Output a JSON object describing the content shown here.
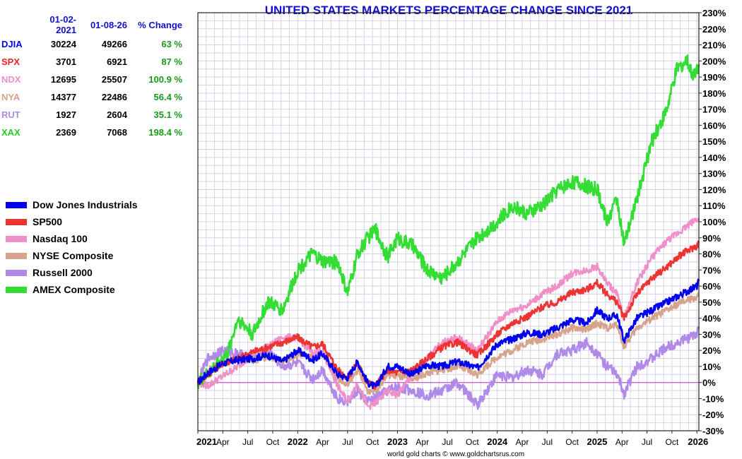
{
  "title": "UNITED STATES MARKETS PERCENTAGE CHANGE SINCE 2021",
  "credit": "world gold charts © www.goldchartsrus.com",
  "table": {
    "headers": [
      "",
      "01-02-2021",
      "01-08-26",
      "% Change"
    ],
    "rows": [
      {
        "symbol": "DJIA",
        "start": "30224",
        "end": "49266",
        "change": "63 %",
        "color": "#0000ee"
      },
      {
        "symbol": "SPX",
        "start": "3701",
        "end": "6921",
        "change": "87 %",
        "color": "#ee2222"
      },
      {
        "symbol": "NDX",
        "start": "12695",
        "end": "25507",
        "change": "100.9 %",
        "color": "#f090c8"
      },
      {
        "symbol": "NYA",
        "start": "14377",
        "end": "22486",
        "change": "56.4 %",
        "color": "#d6a48c"
      },
      {
        "symbol": "RUT",
        "start": "1927",
        "end": "2604",
        "change": "35.1 %",
        "color": "#b08ae8"
      },
      {
        "symbol": "XAX",
        "start": "2369",
        "end": "7068",
        "change": "198.4 %",
        "color": "#22cc22"
      }
    ]
  },
  "legend": [
    {
      "label": "Dow Jones Industrials",
      "color": "#0000ee"
    },
    {
      "label": "SP500",
      "color": "#ee3333"
    },
    {
      "label": "Nasdaq 100",
      "color": "#f090c8"
    },
    {
      "label": "NYSE Composite",
      "color": "#d6a48c"
    },
    {
      "label": "Russell 2000",
      "color": "#b08ae8"
    },
    {
      "label": "AMEX Composite",
      "color": "#33dd33"
    }
  ],
  "chart_data": {
    "type": "line",
    "title": "UNITED STATES MARKETS PERCENTAGE CHANGE SINCE 2021",
    "x_ticks": [
      "2021",
      "Apr",
      "Jul",
      "Oct",
      "2022",
      "Apr",
      "Jul",
      "Oct",
      "2023",
      "Apr",
      "Jul",
      "Oct",
      "2024",
      "Apr",
      "Jul",
      "Oct",
      "2025",
      "Apr",
      "Jul",
      "Oct",
      "2026"
    ],
    "y_ticks": [
      "230%",
      "220%",
      "210%",
      "200%",
      "190%",
      "180%",
      "170%",
      "160%",
      "150%",
      "140%",
      "130%",
      "120%",
      "110%",
      "100%",
      "90%",
      "80%",
      "70%",
      "60%",
      "50%",
      "40%",
      "30%",
      "20%",
      "10%",
      "0%",
      "-10%",
      "-20%",
      "-30%"
    ],
    "ylim": [
      -30,
      230
    ],
    "xlim": [
      2021.0,
      2026.02
    ],
    "y_unit": "% change",
    "grid": true,
    "legend_position": "left",
    "zero_line_color": "#cc44cc",
    "series": [
      {
        "name": "Dow Jones Industrials",
        "color": "#0000ee",
        "x": [
          2021.0,
          2021.1,
          2021.25,
          2021.4,
          2021.55,
          2021.7,
          2021.85,
          2022.0,
          2022.15,
          2022.25,
          2022.4,
          2022.5,
          2022.6,
          2022.7,
          2022.78,
          2022.9,
          2023.0,
          2023.15,
          2023.3,
          2023.45,
          2023.6,
          2023.8,
          2024.0,
          2024.15,
          2024.3,
          2024.45,
          2024.6,
          2024.75,
          2024.9,
          2025.0,
          2025.1,
          2025.2,
          2025.27,
          2025.4,
          2025.55,
          2025.7,
          2025.85,
          2026.0,
          2026.02
        ],
        "y": [
          0,
          6,
          12,
          14,
          15,
          17,
          13,
          20,
          14,
          18,
          5,
          3,
          13,
          0,
          -3,
          10,
          10,
          5,
          11,
          10,
          13,
          9,
          24,
          27,
          31,
          30,
          34,
          39,
          37,
          45,
          40,
          42,
          26,
          40,
          45,
          50,
          55,
          60,
          63
        ]
      },
      {
        "name": "SP500",
        "color": "#ee3333",
        "x": [
          2021.0,
          2021.1,
          2021.25,
          2021.4,
          2021.55,
          2021.7,
          2021.85,
          2022.0,
          2022.15,
          2022.25,
          2022.4,
          2022.5,
          2022.6,
          2022.7,
          2022.78,
          2022.9,
          2023.0,
          2023.15,
          2023.3,
          2023.45,
          2023.6,
          2023.8,
          2024.0,
          2024.15,
          2024.3,
          2024.45,
          2024.6,
          2024.75,
          2024.9,
          2025.0,
          2025.1,
          2025.2,
          2025.27,
          2025.4,
          2025.55,
          2025.7,
          2025.85,
          2026.0,
          2026.02
        ],
        "y": [
          0,
          5,
          12,
          15,
          19,
          22,
          25,
          28,
          22,
          24,
          8,
          3,
          12,
          0,
          -2,
          8,
          6,
          8,
          15,
          22,
          25,
          17,
          30,
          37,
          41,
          47,
          50,
          56,
          58,
          62,
          55,
          50,
          40,
          55,
          65,
          72,
          80,
          85,
          87
        ]
      },
      {
        "name": "Nasdaq 100",
        "color": "#f090c8",
        "x": [
          2021.0,
          2021.1,
          2021.25,
          2021.4,
          2021.55,
          2021.7,
          2021.85,
          2022.0,
          2022.15,
          2022.25,
          2022.4,
          2022.5,
          2022.6,
          2022.7,
          2022.78,
          2022.9,
          2023.0,
          2023.15,
          2023.3,
          2023.45,
          2023.6,
          2023.8,
          2024.0,
          2024.15,
          2024.3,
          2024.45,
          2024.6,
          2024.75,
          2024.9,
          2025.0,
          2025.1,
          2025.2,
          2025.27,
          2025.4,
          2025.55,
          2025.7,
          2025.85,
          2026.0,
          2026.02
        ],
        "y": [
          0,
          -2,
          4,
          10,
          18,
          22,
          28,
          28,
          18,
          20,
          -2,
          -12,
          0,
          -15,
          -13,
          -5,
          -8,
          5,
          15,
          25,
          28,
          20,
          38,
          45,
          48,
          55,
          60,
          68,
          70,
          72,
          62,
          55,
          40,
          62,
          78,
          88,
          95,
          102,
          101
        ]
      },
      {
        "name": "NYSE Composite",
        "color": "#d6a48c",
        "x": [
          2021.0,
          2021.1,
          2021.25,
          2021.4,
          2021.55,
          2021.7,
          2021.85,
          2022.0,
          2022.15,
          2022.25,
          2022.4,
          2022.5,
          2022.6,
          2022.7,
          2022.78,
          2022.9,
          2023.0,
          2023.15,
          2023.3,
          2023.45,
          2023.6,
          2023.8,
          2024.0,
          2024.15,
          2024.3,
          2024.45,
          2024.6,
          2024.75,
          2024.9,
          2025.0,
          2025.1,
          2025.2,
          2025.27,
          2025.4,
          2025.55,
          2025.7,
          2025.85,
          2026.0,
          2026.02
        ],
        "y": [
          0,
          8,
          12,
          15,
          14,
          16,
          13,
          18,
          15,
          17,
          3,
          -2,
          8,
          -5,
          -5,
          5,
          4,
          2,
          6,
          8,
          10,
          5,
          16,
          20,
          25,
          27,
          30,
          34,
          33,
          37,
          34,
          36,
          22,
          34,
          40,
          45,
          50,
          53,
          56
        ]
      },
      {
        "name": "Russell 2000",
        "color": "#b08ae8",
        "x": [
          2021.0,
          2021.1,
          2021.25,
          2021.4,
          2021.55,
          2021.7,
          2021.85,
          2022.0,
          2022.15,
          2022.25,
          2022.4,
          2022.5,
          2022.6,
          2022.7,
          2022.78,
          2022.9,
          2023.0,
          2023.15,
          2023.3,
          2023.45,
          2023.6,
          2023.8,
          2024.0,
          2024.15,
          2024.3,
          2024.45,
          2024.6,
          2024.75,
          2024.9,
          2025.0,
          2025.1,
          2025.2,
          2025.27,
          2025.4,
          2025.55,
          2025.7,
          2025.85,
          2026.0,
          2026.02
        ],
        "y": [
          0,
          15,
          20,
          18,
          15,
          20,
          10,
          12,
          2,
          8,
          -10,
          -12,
          -5,
          -12,
          -10,
          -5,
          -3,
          -5,
          -8,
          -5,
          0,
          -14,
          5,
          3,
          8,
          5,
          18,
          20,
          25,
          18,
          10,
          5,
          -7,
          10,
          15,
          22,
          26,
          30,
          35
        ]
      },
      {
        "name": "AMEX Composite",
        "color": "#33dd33",
        "x": [
          2021.0,
          2021.1,
          2021.2,
          2021.3,
          2021.4,
          2021.55,
          2021.7,
          2021.85,
          2022.0,
          2022.15,
          2022.25,
          2022.4,
          2022.5,
          2022.6,
          2022.7,
          2022.78,
          2022.9,
          2023.0,
          2023.15,
          2023.3,
          2023.45,
          2023.6,
          2023.8,
          2024.0,
          2024.15,
          2024.3,
          2024.45,
          2024.6,
          2024.75,
          2024.9,
          2025.0,
          2025.1,
          2025.2,
          2025.27,
          2025.4,
          2025.55,
          2025.7,
          2025.8,
          2025.9,
          2025.95,
          2026.0,
          2026.02
        ],
        "y": [
          0,
          5,
          12,
          18,
          40,
          30,
          50,
          45,
          70,
          80,
          75,
          75,
          55,
          80,
          90,
          95,
          78,
          90,
          85,
          70,
          65,
          75,
          90,
          100,
          110,
          105,
          110,
          120,
          125,
          122,
          120,
          100,
          115,
          85,
          115,
          150,
          170,
          195,
          200,
          192,
          195,
          198
        ]
      }
    ]
  }
}
